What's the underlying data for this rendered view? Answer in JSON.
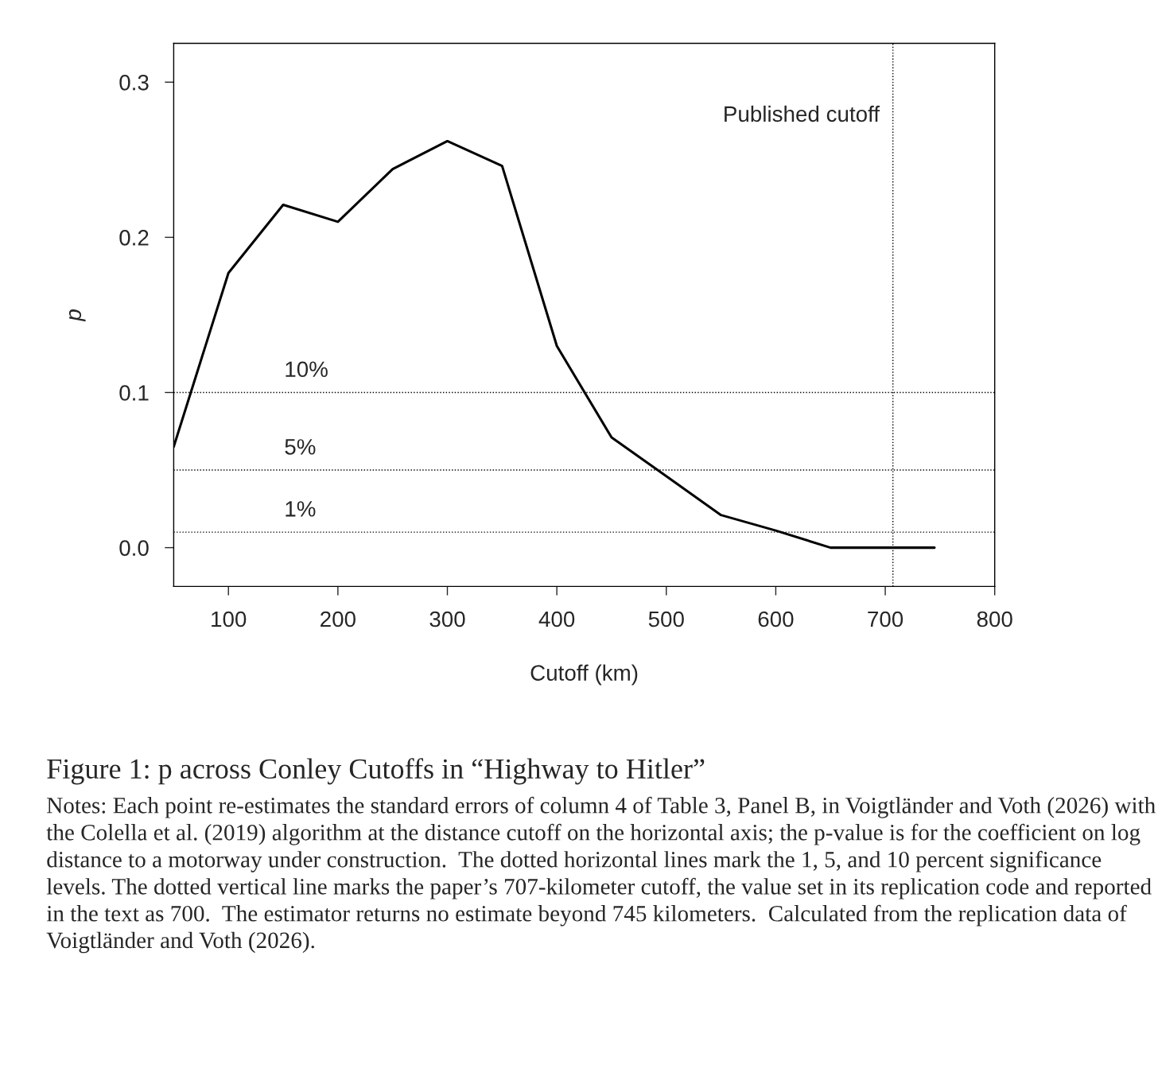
{
  "chart_data": {
    "type": "line",
    "title": "Figure 1: p across Conley Cutoffs in “Highway to Hitler”",
    "xlabel": "Cutoff (km)",
    "ylabel": "p",
    "x": [
      50,
      100,
      150,
      200,
      250,
      300,
      350,
      400,
      450,
      500,
      550,
      600,
      650,
      700,
      745
    ],
    "series": [
      {
        "color": "#000000",
        "values": [
          0.065,
          0.177,
          0.221,
          0.21,
          0.244,
          0.262,
          0.246,
          0.13,
          0.071,
          0.046,
          0.021,
          0.011,
          0.0,
          0.0,
          0.0
        ]
      }
    ],
    "xlim": [
      50,
      800
    ],
    "ylim": [
      -0.025,
      0.325
    ],
    "xticks": [
      100,
      200,
      300,
      400,
      500,
      600,
      700,
      800
    ],
    "yticks": [
      {
        "value": 0,
        "label": "0.0"
      },
      0.1,
      0.2,
      0.3
    ],
    "ref_lines": [
      {
        "axis": "y",
        "value": 0.1,
        "label": "10%",
        "line_style": "dotted",
        "color": "#000000"
      },
      {
        "axis": "y",
        "value": 0.05,
        "label": "5%",
        "line_style": "dotted",
        "color": "#000000"
      },
      {
        "axis": "y",
        "value": 0.01,
        "label": "1%",
        "line_style": "dotted",
        "color": "#000000"
      },
      {
        "axis": "x",
        "value": 707,
        "label": "Published cutoff",
        "line_style": "dotted",
        "color": "#000000"
      }
    ],
    "annotations": [
      "Notes: Each point re-estimates the standard errors of column 4 of Table 3, Panel B, in Voigtländer and Voth (2026) with the Colella et al. (2019) algorithm at the distance cutoff on the horizontal axis; the p-value is for the coefficient on log distance to a motorway under construction.  The dotted horizontal lines mark the 1, 5, and 10 percent significance levels. The dotted vertical line marks the paper’s 707-kilometer cutoff, the value set in its replication code and reported in the text as 700.  The estimator returns no estimate beyond 745 kilometers.  Calculated from the replication data of Voigtländer and Voth (2026)."
    ],
    "grid": false,
    "marker": "none",
    "line_style": "solid"
  }
}
